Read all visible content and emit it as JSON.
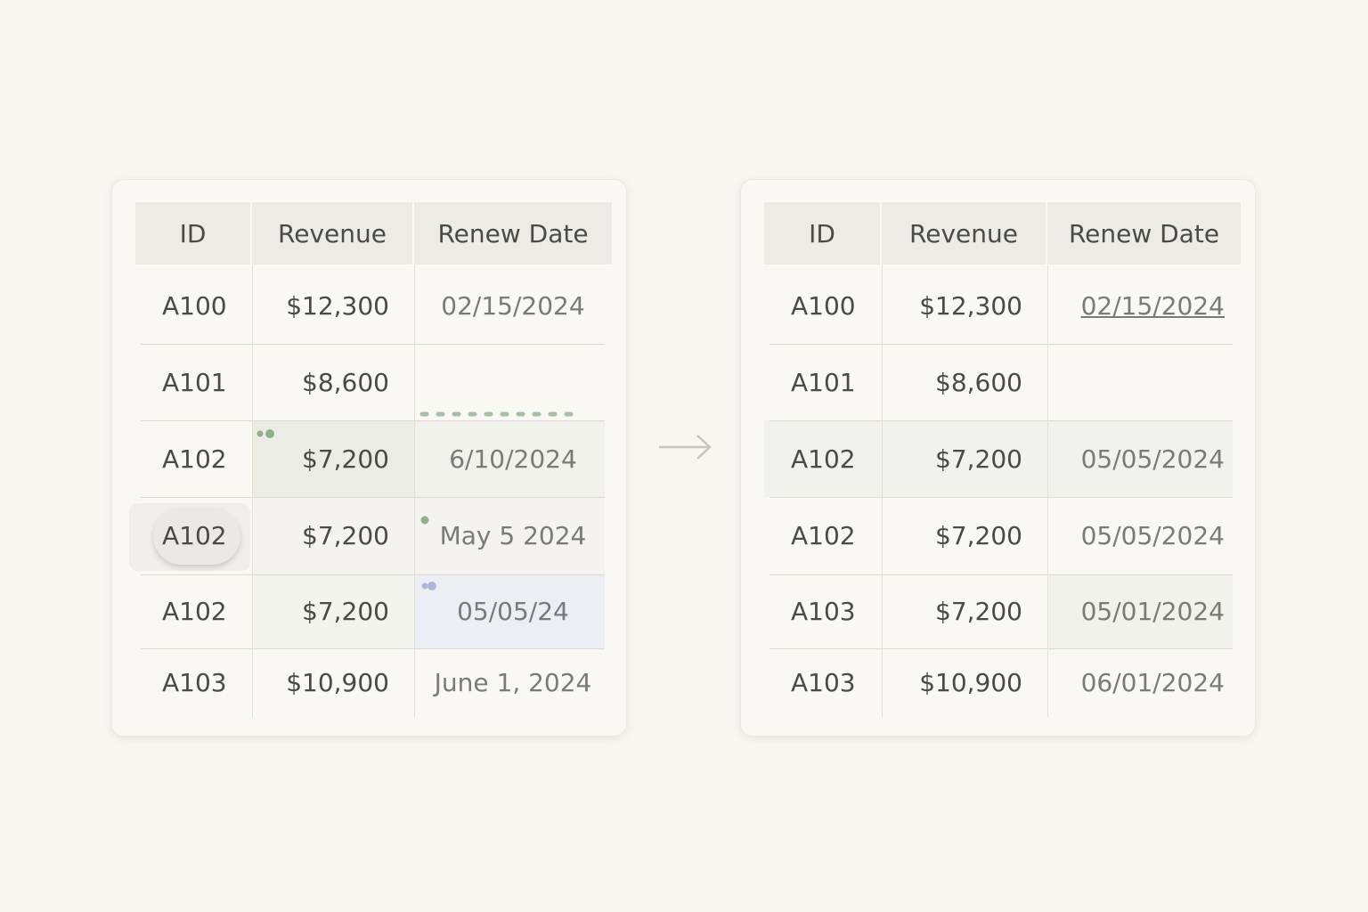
{
  "left_table": {
    "headers": [
      "ID",
      "Revenue",
      "Renew Date"
    ],
    "rows": [
      [
        "A100",
        "$12,300",
        "02/15/2024"
      ],
      [
        "A101",
        "$8,600"
      ],
      [
        "A102",
        "$7,200",
        "6/10/2024"
      ],
      [
        "A102",
        "$7,200",
        "May 5 2024"
      ],
      [
        "A102",
        "$7,200",
        "05/05/24"
      ],
      [
        "A103",
        "$10,900",
        "June 1, 2024"
      ]
    ]
  },
  "right_table": {
    "headers": [
      "ID",
      "Revenue",
      "Renew Date"
    ],
    "rows": [
      [
        "A100",
        "$12,300",
        "02/15/2024"
      ],
      [
        "A101",
        "$8,600"
      ],
      [
        "A102",
        "$7,200",
        "05/05/2024"
      ],
      [
        "A102",
        "$7,200",
        "05/05/2024"
      ],
      [
        "A103",
        "$7,200",
        "05/01/2024"
      ],
      [
        "A103",
        "$10,900",
        "06/01/2024"
      ]
    ]
  }
}
